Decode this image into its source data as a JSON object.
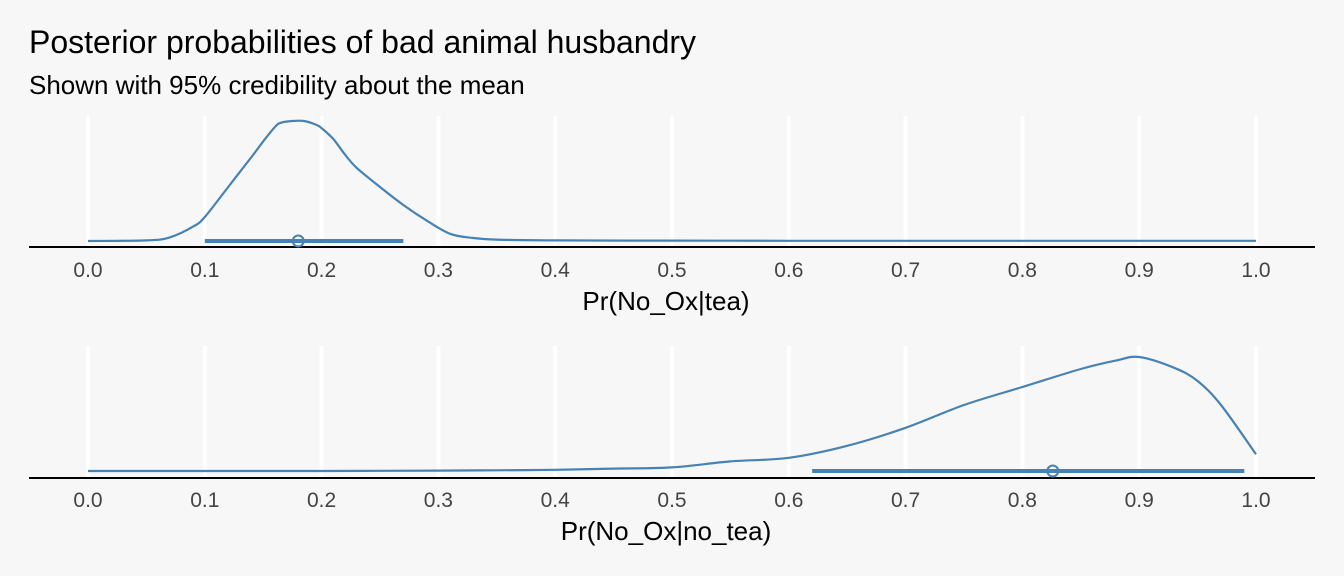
{
  "title": "Posterior probabilities of bad animal husbandry",
  "subtitle": "Shown with 95% credibility about the mean",
  "colors": {
    "accent": "#4682b4",
    "background": "#f7f7f7",
    "grid": "#ffffff",
    "axis": "#000000"
  },
  "chart_data": [
    {
      "type": "area",
      "xlabel": "Pr(No_Ox|tea)",
      "xlim": [
        0,
        1
      ],
      "xticks": [
        "0.0",
        "0.1",
        "0.2",
        "0.3",
        "0.4",
        "0.5",
        "0.6",
        "0.7",
        "0.8",
        "0.9",
        "1.0"
      ],
      "grid": true,
      "density": {
        "x": [
          0.0,
          0.05,
          0.07,
          0.09,
          0.1,
          0.12,
          0.14,
          0.15,
          0.16,
          0.165,
          0.175,
          0.185,
          0.195,
          0.2,
          0.21,
          0.22,
          0.23,
          0.25,
          0.27,
          0.29,
          0.31,
          0.33,
          0.35,
          0.4,
          0.5,
          0.6,
          0.7,
          0.8,
          0.9,
          1.0
        ],
        "y": [
          0.0,
          0.005,
          0.03,
          0.12,
          0.2,
          0.45,
          0.7,
          0.83,
          0.95,
          0.985,
          1.0,
          1.0,
          0.97,
          0.94,
          0.85,
          0.72,
          0.61,
          0.45,
          0.3,
          0.17,
          0.06,
          0.025,
          0.012,
          0.005,
          0.003,
          0.002,
          0.002,
          0.002,
          0.002,
          0.002
        ]
      },
      "interval": {
        "low": 0.1,
        "high": 0.27,
        "mean": 0.18
      }
    },
    {
      "type": "area",
      "xlabel": "Pr(No_Ox|no_tea)",
      "xlim": [
        0,
        1
      ],
      "xticks": [
        "0.0",
        "0.1",
        "0.2",
        "0.3",
        "0.4",
        "0.5",
        "0.6",
        "0.7",
        "0.8",
        "0.9",
        "1.0"
      ],
      "grid": true,
      "density": {
        "x": [
          0.0,
          0.1,
          0.2,
          0.3,
          0.35,
          0.4,
          0.45,
          0.5,
          0.55,
          0.6,
          0.65,
          0.7,
          0.75,
          0.8,
          0.85,
          0.88,
          0.9,
          0.93,
          0.95,
          0.97,
          1.0
        ],
        "y": [
          0.0,
          0.0,
          0.0,
          0.003,
          0.006,
          0.01,
          0.02,
          0.03,
          0.08,
          0.11,
          0.21,
          0.36,
          0.55,
          0.7,
          0.85,
          0.92,
          0.95,
          0.86,
          0.75,
          0.55,
          0.14
        ]
      },
      "interval": {
        "low": 0.62,
        "high": 0.99,
        "mean": 0.826
      }
    }
  ]
}
